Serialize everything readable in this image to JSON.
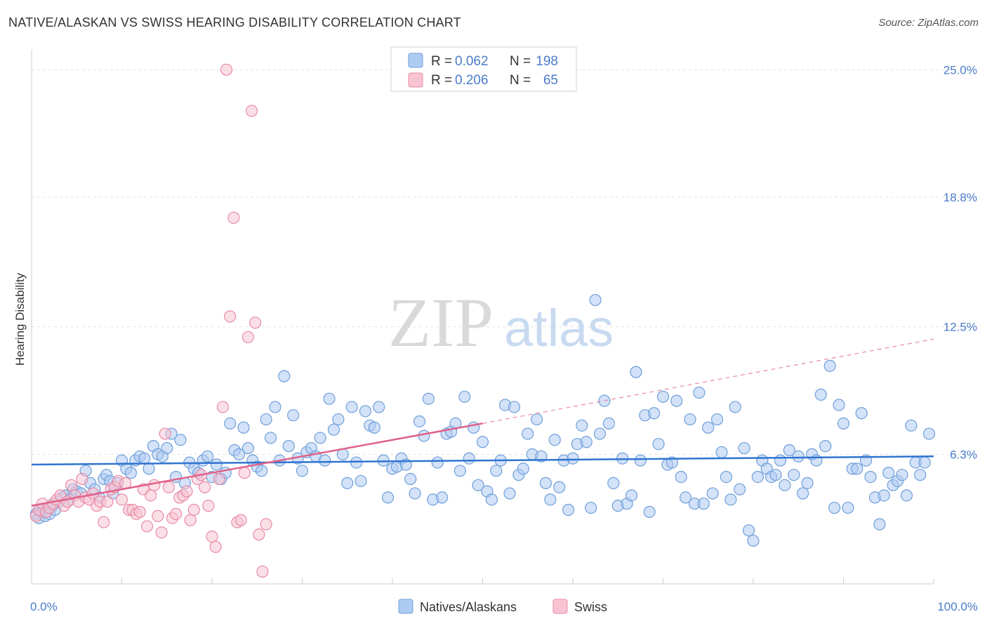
{
  "header": {
    "title": "NATIVE/ALASKAN VS SWISS HEARING DISABILITY CORRELATION CHART",
    "source": "Source: ZipAtlas.com"
  },
  "legend_top": {
    "rows": [
      {
        "r_label": "R =",
        "r_value": "0.062",
        "n_label": "N =",
        "n_value": "198",
        "color": "#aecbf2",
        "stroke": "#6f9fd9"
      },
      {
        "r_label": "R =",
        "r_value": "0.206",
        "n_label": "N =",
        "n_value": "65",
        "color": "#f8c4d3",
        "stroke": "#e88aa6"
      }
    ]
  },
  "legend_bottom": {
    "items": [
      {
        "label": "Natives/Alaskans",
        "color": "#aecbf2",
        "stroke": "#6f9fd9"
      },
      {
        "label": "Swiss",
        "color": "#f8c4d3",
        "stroke": "#e88aa6"
      }
    ]
  },
  "watermark": {
    "zip": "ZIP",
    "atlas": "atlas"
  },
  "chart_data": {
    "type": "scatter",
    "title": "NATIVE/ALASKAN VS SWISS HEARING DISABILITY CORRELATION CHART",
    "xlabel": "",
    "ylabel": "Hearing Disability",
    "xlim": [
      0,
      100
    ],
    "ylim": [
      0,
      26
    ],
    "x_tick_labels": [
      "0.0%",
      "100.0%"
    ],
    "y_ticks": [
      6.3,
      12.5,
      18.8,
      25.0
    ],
    "y_tick_labels": [
      "6.3%",
      "12.5%",
      "18.8%",
      "25.0%"
    ],
    "grid": true,
    "legend_position": "top-center",
    "series": [
      {
        "name": "Natives/Alaskans",
        "color": "#6f9fd9",
        "fill": "#aecbf2",
        "r": 0.062,
        "n": 198,
        "trend": {
          "x": [
            0,
            100
          ],
          "y": [
            5.8,
            6.2
          ]
        },
        "points": [
          [
            0.5,
            3.4
          ],
          [
            0.8,
            3.2
          ],
          [
            1.0,
            3.6
          ],
          [
            1.2,
            3.5
          ],
          [
            1.5,
            3.3
          ],
          [
            1.8,
            3.7
          ],
          [
            2.0,
            3.4
          ],
          [
            2.3,
            3.8
          ],
          [
            2.6,
            3.6
          ],
          [
            3.0,
            4.0
          ],
          [
            3.4,
            4.2
          ],
          [
            3.8,
            4.3
          ],
          [
            4.2,
            4.1
          ],
          [
            4.6,
            4.6
          ],
          [
            5.0,
            4.5
          ],
          [
            5.5,
            4.4
          ],
          [
            6.0,
            5.5
          ],
          [
            6.5,
            4.9
          ],
          [
            7.0,
            4.6
          ],
          [
            7.5,
            4.2
          ],
          [
            8.0,
            5.1
          ],
          [
            8.3,
            5.3
          ],
          [
            8.7,
            5.0
          ],
          [
            9.0,
            4.4
          ],
          [
            9.5,
            4.9
          ],
          [
            10.0,
            6.0
          ],
          [
            10.5,
            5.6
          ],
          [
            11.0,
            5.4
          ],
          [
            11.5,
            6.0
          ],
          [
            12.0,
            6.2
          ],
          [
            12.5,
            6.1
          ],
          [
            13.0,
            5.6
          ],
          [
            13.5,
            6.7
          ],
          [
            14.0,
            6.3
          ],
          [
            14.5,
            6.2
          ],
          [
            15.0,
            6.6
          ],
          [
            15.5,
            7.3
          ],
          [
            16.0,
            5.2
          ],
          [
            16.5,
            7.0
          ],
          [
            17.0,
            4.9
          ],
          [
            17.5,
            5.9
          ],
          [
            18.0,
            5.6
          ],
          [
            18.5,
            5.4
          ],
          [
            19.0,
            6.0
          ],
          [
            19.5,
            6.2
          ],
          [
            20.0,
            5.2
          ],
          [
            20.5,
            5.8
          ],
          [
            21.0,
            5.1
          ],
          [
            21.5,
            5.4
          ],
          [
            22.0,
            7.8
          ],
          [
            22.5,
            6.5
          ],
          [
            23.0,
            6.3
          ],
          [
            23.5,
            7.6
          ],
          [
            24.0,
            6.6
          ],
          [
            24.5,
            6.0
          ],
          [
            25.0,
            5.7
          ],
          [
            25.5,
            5.5
          ],
          [
            26.0,
            8.0
          ],
          [
            26.5,
            7.1
          ],
          [
            27.0,
            8.6
          ],
          [
            27.5,
            6.0
          ],
          [
            28.0,
            10.1
          ],
          [
            28.5,
            6.7
          ],
          [
            29.0,
            8.2
          ],
          [
            29.5,
            6.1
          ],
          [
            30.0,
            5.5
          ],
          [
            30.5,
            6.4
          ],
          [
            31.0,
            6.6
          ],
          [
            31.5,
            6.2
          ],
          [
            32.0,
            7.1
          ],
          [
            32.5,
            6.0
          ],
          [
            33.0,
            9.0
          ],
          [
            33.5,
            7.5
          ],
          [
            34.0,
            8.0
          ],
          [
            34.5,
            6.3
          ],
          [
            35.0,
            4.9
          ],
          [
            35.5,
            8.6
          ],
          [
            36.0,
            5.9
          ],
          [
            36.5,
            5.0
          ],
          [
            37.0,
            8.4
          ],
          [
            37.5,
            7.7
          ],
          [
            38.0,
            7.6
          ],
          [
            38.5,
            8.6
          ],
          [
            39.0,
            6.0
          ],
          [
            39.5,
            4.2
          ],
          [
            40.0,
            5.6
          ],
          [
            40.5,
            5.7
          ],
          [
            41.0,
            6.1
          ],
          [
            41.5,
            5.8
          ],
          [
            42.0,
            5.1
          ],
          [
            42.5,
            4.4
          ],
          [
            43.0,
            7.9
          ],
          [
            43.5,
            7.2
          ],
          [
            44.0,
            9.0
          ],
          [
            44.5,
            4.1
          ],
          [
            45.0,
            5.9
          ],
          [
            45.5,
            4.2
          ],
          [
            46.0,
            7.3
          ],
          [
            46.5,
            7.4
          ],
          [
            47.0,
            7.8
          ],
          [
            47.5,
            5.5
          ],
          [
            48.0,
            9.1
          ],
          [
            48.5,
            6.1
          ],
          [
            49.0,
            7.6
          ],
          [
            49.5,
            4.8
          ],
          [
            50.0,
            6.9
          ],
          [
            50.5,
            4.5
          ],
          [
            51.0,
            4.1
          ],
          [
            51.5,
            5.5
          ],
          [
            52.0,
            6.0
          ],
          [
            52.5,
            8.7
          ],
          [
            53.0,
            4.4
          ],
          [
            53.5,
            8.6
          ],
          [
            54.0,
            5.3
          ],
          [
            54.5,
            5.6
          ],
          [
            55.0,
            7.3
          ],
          [
            55.5,
            6.3
          ],
          [
            56.0,
            8.0
          ],
          [
            56.5,
            6.2
          ],
          [
            57.0,
            4.9
          ],
          [
            57.5,
            4.1
          ],
          [
            58.0,
            7.0
          ],
          [
            58.5,
            4.7
          ],
          [
            59.0,
            6.0
          ],
          [
            59.5,
            3.6
          ],
          [
            60.0,
            6.1
          ],
          [
            60.5,
            6.8
          ],
          [
            61.0,
            7.7
          ],
          [
            61.5,
            6.9
          ],
          [
            62.0,
            3.7
          ],
          [
            62.5,
            13.8
          ],
          [
            63.0,
            7.3
          ],
          [
            63.5,
            8.9
          ],
          [
            64.0,
            7.8
          ],
          [
            64.5,
            4.9
          ],
          [
            65.0,
            3.8
          ],
          [
            65.5,
            6.1
          ],
          [
            66.0,
            3.9
          ],
          [
            66.5,
            4.3
          ],
          [
            67.0,
            10.3
          ],
          [
            67.5,
            6.0
          ],
          [
            68.0,
            8.2
          ],
          [
            68.5,
            3.5
          ],
          [
            69.0,
            8.3
          ],
          [
            69.5,
            6.8
          ],
          [
            70.0,
            9.1
          ],
          [
            70.5,
            5.8
          ],
          [
            71.0,
            5.9
          ],
          [
            71.5,
            8.9
          ],
          [
            72.0,
            5.2
          ],
          [
            72.5,
            4.2
          ],
          [
            73.0,
            8.0
          ],
          [
            73.5,
            3.9
          ],
          [
            74.0,
            9.3
          ],
          [
            74.5,
            3.9
          ],
          [
            75.0,
            7.6
          ],
          [
            75.5,
            4.4
          ],
          [
            76.0,
            8.0
          ],
          [
            76.5,
            6.4
          ],
          [
            77.0,
            5.2
          ],
          [
            77.5,
            4.1
          ],
          [
            78.0,
            8.6
          ],
          [
            78.5,
            4.6
          ],
          [
            79.0,
            6.6
          ],
          [
            79.5,
            2.6
          ],
          [
            80.0,
            2.1
          ],
          [
            80.5,
            5.2
          ],
          [
            81.0,
            6.0
          ],
          [
            81.5,
            5.6
          ],
          [
            82.0,
            5.2
          ],
          [
            82.5,
            5.3
          ],
          [
            83.0,
            6.0
          ],
          [
            83.5,
            4.8
          ],
          [
            84.0,
            6.5
          ],
          [
            84.5,
            5.3
          ],
          [
            85.0,
            6.2
          ],
          [
            85.5,
            4.4
          ],
          [
            86.0,
            4.9
          ],
          [
            86.5,
            6.3
          ],
          [
            87.0,
            6.0
          ],
          [
            87.5,
            9.2
          ],
          [
            88.0,
            6.7
          ],
          [
            88.5,
            10.6
          ],
          [
            89.0,
            3.7
          ],
          [
            89.5,
            8.7
          ],
          [
            90.0,
            7.8
          ],
          [
            90.5,
            3.7
          ],
          [
            91.0,
            5.6
          ],
          [
            91.5,
            5.6
          ],
          [
            92.0,
            8.3
          ],
          [
            92.5,
            6.0
          ],
          [
            93.0,
            5.2
          ],
          [
            93.5,
            4.2
          ],
          [
            94.0,
            2.9
          ],
          [
            94.5,
            4.3
          ],
          [
            95.0,
            5.4
          ],
          [
            95.5,
            4.8
          ],
          [
            96.0,
            5.0
          ],
          [
            96.5,
            5.3
          ],
          [
            97.0,
            4.3
          ],
          [
            97.5,
            7.7
          ],
          [
            98.0,
            5.9
          ],
          [
            98.5,
            5.3
          ],
          [
            99.0,
            5.9
          ],
          [
            99.5,
            7.3
          ]
        ]
      },
      {
        "name": "Swiss",
        "color": "#e88aa6",
        "fill": "#f8c4d3",
        "r": 0.206,
        "n": 65,
        "trend": {
          "x": [
            0,
            50
          ],
          "y": [
            3.8,
            7.8
          ]
        },
        "trend_extension": {
          "x": [
            50,
            100
          ],
          "y": [
            7.8,
            11.9
          ]
        },
        "points": [
          [
            0.5,
            3.3
          ],
          [
            0.8,
            3.6
          ],
          [
            1.2,
            3.9
          ],
          [
            1.6,
            3.5
          ],
          [
            2.0,
            3.7
          ],
          [
            2.4,
            3.9
          ],
          [
            2.8,
            4.1
          ],
          [
            3.2,
            4.3
          ],
          [
            3.6,
            3.8
          ],
          [
            4.0,
            4.0
          ],
          [
            4.4,
            4.8
          ],
          [
            4.8,
            4.3
          ],
          [
            5.2,
            4.0
          ],
          [
            5.6,
            5.1
          ],
          [
            6.0,
            4.2
          ],
          [
            6.4,
            4.1
          ],
          [
            6.8,
            4.4
          ],
          [
            7.2,
            3.8
          ],
          [
            7.6,
            4.0
          ],
          [
            8.0,
            3.0
          ],
          [
            8.4,
            4.0
          ],
          [
            8.8,
            4.6
          ],
          [
            9.2,
            4.7
          ],
          [
            9.6,
            5.0
          ],
          [
            10.0,
            4.1
          ],
          [
            10.4,
            4.9
          ],
          [
            10.8,
            3.6
          ],
          [
            11.2,
            3.6
          ],
          [
            11.6,
            3.4
          ],
          [
            12.0,
            3.5
          ],
          [
            12.4,
            4.6
          ],
          [
            12.8,
            2.8
          ],
          [
            13.2,
            4.3
          ],
          [
            13.6,
            4.8
          ],
          [
            14.0,
            3.3
          ],
          [
            14.4,
            2.5
          ],
          [
            14.8,
            7.3
          ],
          [
            15.2,
            4.7
          ],
          [
            15.6,
            3.2
          ],
          [
            16.0,
            3.4
          ],
          [
            16.4,
            4.2
          ],
          [
            16.8,
            4.3
          ],
          [
            17.2,
            4.5
          ],
          [
            17.6,
            3.1
          ],
          [
            18.0,
            3.6
          ],
          [
            18.4,
            5.1
          ],
          [
            18.8,
            5.3
          ],
          [
            19.2,
            4.7
          ],
          [
            19.6,
            3.8
          ],
          [
            20.0,
            2.3
          ],
          [
            20.4,
            1.8
          ],
          [
            20.8,
            5.1
          ],
          [
            21.2,
            8.6
          ],
          [
            21.6,
            25.0
          ],
          [
            22.0,
            13.0
          ],
          [
            22.4,
            17.8
          ],
          [
            22.8,
            3.0
          ],
          [
            23.2,
            3.1
          ],
          [
            23.6,
            5.4
          ],
          [
            24.0,
            12.0
          ],
          [
            24.4,
            23.0
          ],
          [
            24.8,
            12.7
          ],
          [
            25.2,
            2.4
          ],
          [
            25.6,
            0.6
          ],
          [
            26.0,
            2.9
          ]
        ]
      }
    ]
  }
}
